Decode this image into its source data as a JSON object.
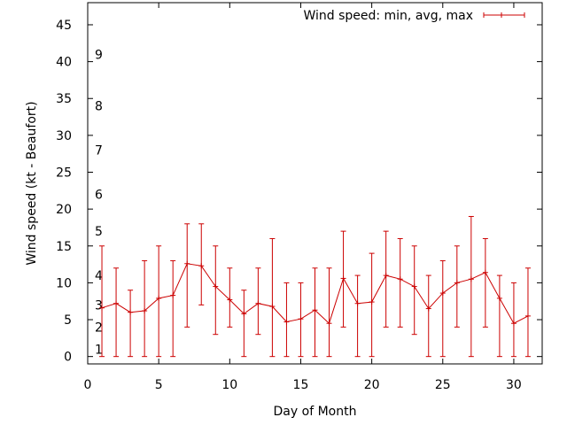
{
  "chart_data": {
    "type": "line",
    "title": "",
    "xlabel": "Day of Month",
    "ylabel": "Wind speed (kt - Beaufort)",
    "xlim": [
      0,
      32
    ],
    "ylim": [
      -1,
      48
    ],
    "xticks": [
      0,
      5,
      10,
      15,
      20,
      25,
      30
    ],
    "yticks": [
      0,
      5,
      10,
      15,
      20,
      25,
      30,
      35,
      40,
      45
    ],
    "grid": false,
    "legend_position": "top-right",
    "series": [
      {
        "name": "Wind speed: min, avg, max",
        "color": "#cc0000",
        "errorbars": true,
        "x": [
          1,
          2,
          3,
          4,
          5,
          6,
          7,
          8,
          9,
          10,
          11,
          12,
          13,
          14,
          15,
          16,
          17,
          18,
          19,
          20,
          21,
          22,
          23,
          24,
          25,
          26,
          27,
          28,
          29,
          30,
          31
        ],
        "avg": [
          6.6,
          7.2,
          6.0,
          6.2,
          7.9,
          8.3,
          12.6,
          12.3,
          9.5,
          7.7,
          5.8,
          7.2,
          6.8,
          4.7,
          5.1,
          6.3,
          4.5,
          10.6,
          7.2,
          7.4,
          11.0,
          10.5,
          9.5,
          6.5,
          8.6,
          10.0,
          10.5,
          11.4,
          7.9,
          4.5,
          5.5
        ],
        "min": [
          0,
          0,
          0,
          0,
          0,
          0,
          4,
          7,
          3,
          4,
          0,
          3,
          0,
          0,
          0,
          0,
          0,
          4,
          0,
          0,
          4,
          4,
          3,
          0,
          0,
          4,
          0,
          4,
          0,
          0,
          0
        ],
        "max": [
          15,
          12,
          9,
          13,
          15,
          13,
          18,
          18,
          15,
          12,
          9,
          12,
          16,
          10,
          10,
          12,
          12,
          17,
          11,
          14,
          17,
          16,
          15,
          11,
          13,
          15,
          19,
          16,
          11,
          10,
          12
        ]
      }
    ],
    "annotations": [
      {
        "text": "1",
        "y": 1
      },
      {
        "text": "2",
        "y": 4
      },
      {
        "text": "3",
        "y": 7
      },
      {
        "text": "4",
        "y": 11
      },
      {
        "text": "5",
        "y": 17
      },
      {
        "text": "6",
        "y": 22
      },
      {
        "text": "7",
        "y": 28
      },
      {
        "text": "8",
        "y": 34
      },
      {
        "text": "9",
        "y": 41
      }
    ]
  }
}
